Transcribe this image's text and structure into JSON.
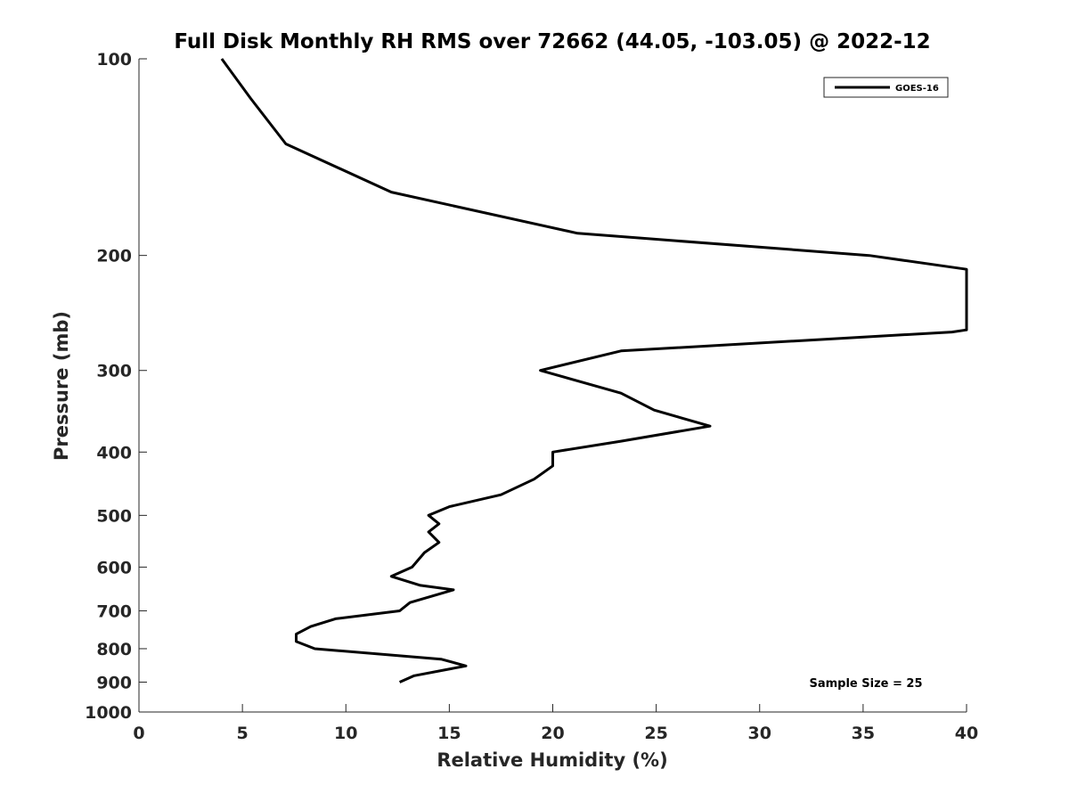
{
  "chart_data": {
    "type": "line",
    "title": "Full Disk Monthly RH RMS over 72662 (44.05, -103.05) @ 2022-12",
    "xlabel": "Relative Humidity (%)",
    "ylabel": "Pressure (mb)",
    "xlim": [
      0,
      40
    ],
    "ylim": [
      100,
      1000
    ],
    "yscale": "log",
    "yaxis_reversed": true,
    "grid": false,
    "legend_position": "top-right",
    "x_ticks": [
      0,
      5,
      10,
      15,
      20,
      25,
      30,
      35,
      40
    ],
    "x_tick_labels": [
      "0",
      "5",
      "10",
      "15",
      "20",
      "25",
      "30",
      "35",
      "40"
    ],
    "y_ticks": [
      100,
      200,
      300,
      400,
      500,
      600,
      700,
      800,
      900,
      1000
    ],
    "y_tick_labels": [
      "100",
      "200",
      "300",
      "400",
      "500",
      "600",
      "700",
      "800",
      "900",
      "1000"
    ],
    "series": [
      {
        "name": "GOES-16",
        "color": "#000000",
        "points": [
          [
            4.0,
            100
          ],
          [
            5.4,
            115
          ],
          [
            7.1,
            135
          ],
          [
            12.2,
            160
          ],
          [
            21.2,
            185
          ],
          [
            35.3,
            200
          ],
          [
            40.2,
            210
          ],
          [
            40.2,
            260
          ],
          [
            39.3,
            262
          ],
          [
            23.3,
            280
          ],
          [
            19.4,
            300
          ],
          [
            23.3,
            325
          ],
          [
            24.9,
            345
          ],
          [
            27.6,
            365
          ],
          [
            23.3,
            385
          ],
          [
            20.0,
            400
          ],
          [
            20.0,
            420
          ],
          [
            19.1,
            440
          ],
          [
            17.5,
            465
          ],
          [
            15.0,
            485
          ],
          [
            14.0,
            500
          ],
          [
            14.5,
            515
          ],
          [
            14.0,
            530
          ],
          [
            14.5,
            550
          ],
          [
            13.8,
            570
          ],
          [
            13.2,
            600
          ],
          [
            12.2,
            620
          ],
          [
            13.6,
            640
          ],
          [
            15.2,
            650
          ],
          [
            13.1,
            680
          ],
          [
            12.6,
            700
          ],
          [
            9.5,
            720
          ],
          [
            8.3,
            740
          ],
          [
            7.6,
            760
          ],
          [
            7.6,
            780
          ],
          [
            8.5,
            800
          ],
          [
            14.6,
            830
          ],
          [
            15.8,
            850
          ],
          [
            13.3,
            880
          ],
          [
            12.6,
            900
          ]
        ]
      }
    ],
    "annotation": "Sample Size = 25"
  }
}
